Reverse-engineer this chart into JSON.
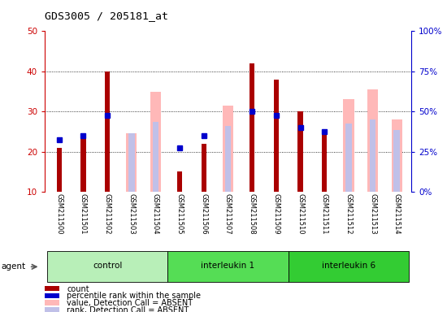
{
  "title": "GDS3005 / 205181_at",
  "samples": [
    "GSM211500",
    "GSM211501",
    "GSM211502",
    "GSM211503",
    "GSM211504",
    "GSM211505",
    "GSM211506",
    "GSM211507",
    "GSM211508",
    "GSM211509",
    "GSM211510",
    "GSM211511",
    "GSM211512",
    "GSM211513",
    "GSM211514"
  ],
  "count_values": [
    21,
    24,
    40,
    null,
    null,
    15,
    22,
    null,
    42,
    38,
    30,
    25,
    null,
    null,
    null
  ],
  "percentile_values": [
    23,
    24,
    29,
    null,
    null,
    21,
    24,
    null,
    30,
    29,
    26,
    25,
    null,
    null,
    null
  ],
  "absent_value_values": [
    null,
    null,
    null,
    24.5,
    35,
    null,
    null,
    31.5,
    null,
    null,
    null,
    null,
    33,
    35.5,
    28
  ],
  "absent_rank_values": [
    null,
    null,
    null,
    24.5,
    27.5,
    null,
    null,
    26.5,
    null,
    null,
    null,
    null,
    27,
    28,
    25.5
  ],
  "groups": [
    {
      "label": "control",
      "start": 0,
      "end": 4,
      "color": "#aeeaae"
    },
    {
      "label": "interleukin 1",
      "start": 5,
      "end": 9,
      "color": "#55dd55"
    },
    {
      "label": "interleukin 6",
      "start": 10,
      "end": 14,
      "color": "#33cc33"
    }
  ],
  "ylim_left": [
    10,
    50
  ],
  "ylim_right": [
    0,
    100
  ],
  "yticks_left": [
    10,
    20,
    30,
    40,
    50
  ],
  "yticks_right": [
    0,
    25,
    50,
    75,
    100
  ],
  "color_count": "#aa0000",
  "color_percentile": "#0000cc",
  "color_absent_value": "#ffb8b8",
  "color_absent_rank": "#c0c0e8",
  "left_axis_color": "#cc0000",
  "right_axis_color": "#0000cc",
  "tick_label_color_left": "#cc0000",
  "tick_label_color_right": "#0000cc"
}
